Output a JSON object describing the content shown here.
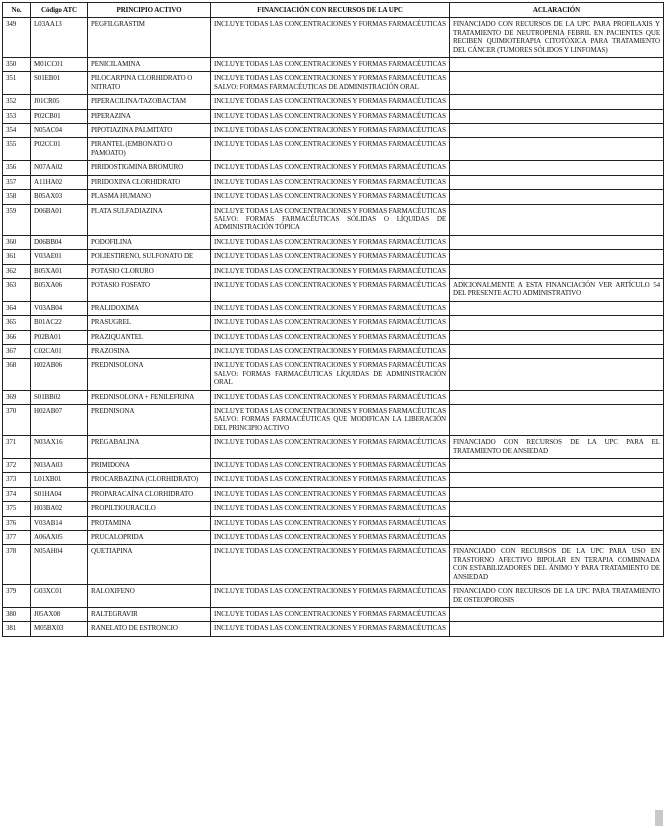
{
  "headers": {
    "no": "No.",
    "codigo": "Código ATC",
    "principio": "PRINCIPIO ACTIVO",
    "financiacion": "FINANCIACIÓN CON RECURSOS DE LA UPC",
    "aclaracion": "ACLARACIÓN"
  },
  "rows": [
    {
      "no": "349",
      "codigo": "L03AA13",
      "principio": "PEGFILGRASTIM",
      "financiacion": "INCLUYE TODAS LAS CONCENTRACIONES Y FORMAS FARMACÉUTICAS",
      "aclaracion": "FINANCIADO CON RECURSOS DE LA UPC PARA PROFILAXIS Y TRATAMIENTO DE NEUTROPENIA FEBRIL EN PACIENTES QUE RECIBEN QUIMIOTERAPIA CITOTÓXICA PARA TRATAMIENTO DEL CÁNCER (TUMORES SÓLIDOS Y LINFOMAS)"
    },
    {
      "no": "350",
      "codigo": "M01CC01",
      "principio": "PENICILAMINA",
      "financiacion": "INCLUYE TODAS LAS CONCENTRACIONES Y FORMAS FARMACÉUTICAS",
      "aclaracion": ""
    },
    {
      "no": "351",
      "codigo": "S01EB01",
      "principio": "PILOCARPINA CLORHIDRATO O NITRATO",
      "financiacion": "INCLUYE TODAS LAS CONCENTRACIONES Y FORMAS FARMACÉUTICAS SALVO: FORMAS FARMACÉUTICAS DE ADMINISTRACIÓN ORAL",
      "aclaracion": ""
    },
    {
      "no": "352",
      "codigo": "J01CR05",
      "principio": "PIPERACILINA/TAZOBACTAM",
      "financiacion": "INCLUYE TODAS LAS CONCENTRACIONES Y FORMAS FARMACÉUTICAS",
      "aclaracion": ""
    },
    {
      "no": "353",
      "codigo": "P02CB01",
      "principio": "PIPERAZINA",
      "financiacion": "INCLUYE TODAS LAS CONCENTRACIONES Y FORMAS FARMACÉUTICAS",
      "aclaracion": ""
    },
    {
      "no": "354",
      "codigo": "N05AC04",
      "principio": "PIPOTIAZINA PALMITATO",
      "financiacion": "INCLUYE TODAS LAS CONCENTRACIONES Y FORMAS FARMACÉUTICAS",
      "aclaracion": ""
    },
    {
      "no": "355",
      "codigo": "P02CC01",
      "principio": "PIRANTEL (EMBONATO O PAMOATO)",
      "financiacion": "INCLUYE TODAS LAS CONCENTRACIONES Y FORMAS FARMACÉUTICAS",
      "aclaracion": ""
    },
    {
      "no": "356",
      "codigo": "N07AA02",
      "principio": "PIRIDOSTIGMINA BROMURO",
      "financiacion": "INCLUYE TODAS LAS CONCENTRACIONES Y FORMAS FARMACÉUTICAS",
      "aclaracion": ""
    },
    {
      "no": "357",
      "codigo": "A11HA02",
      "principio": "PIRIDOXINA CLORHIDRATO",
      "financiacion": "INCLUYE TODAS LAS CONCENTRACIONES Y FORMAS FARMACÉUTICAS",
      "aclaracion": ""
    },
    {
      "no": "358",
      "codigo": "B05AX03",
      "principio": "PLASMA HUMANO",
      "financiacion": "INCLUYE TODAS LAS CONCENTRACIONES Y FORMAS FARMACÉUTICAS",
      "aclaracion": ""
    },
    {
      "no": "359",
      "codigo": "D06BA01",
      "principio": "PLATA SULFADIAZINA",
      "financiacion": "INCLUYE TODAS LAS CONCENTRACIONES Y FORMAS FARMACÉUTICAS SALVO: FORMAS FARMACÉUTICAS SÓLIDAS O LÍQUIDAS DE ADMINISTRACIÓN TÓPICA",
      "aclaracion": ""
    },
    {
      "no": "360",
      "codigo": "D06BB04",
      "principio": "PODOFILINA",
      "financiacion": "INCLUYE TODAS LAS CONCENTRACIONES Y FORMAS FARMACÉUTICAS",
      "aclaracion": ""
    },
    {
      "no": "361",
      "codigo": "V03AE01",
      "principio": "POLIESTIRENO, SULFONATO DE",
      "financiacion": "INCLUYE TODAS LAS CONCENTRACIONES Y FORMAS FARMACÉUTICAS",
      "aclaracion": ""
    },
    {
      "no": "362",
      "codigo": "B05XA01",
      "principio": "POTASIO CLORURO",
      "financiacion": "INCLUYE TODAS LAS CONCENTRACIONES Y FORMAS FARMACÉUTICAS",
      "aclaracion": ""
    },
    {
      "no": "363",
      "codigo": "B05XA06",
      "principio": "POTASIO FOSFATO",
      "financiacion": "INCLUYE TODAS LAS CONCENTRACIONES Y FORMAS FARMACÉUTICAS",
      "aclaracion": "ADICIONALMENTE A ESTA FINANCIACIÓN VER ARTÍCULO 54 DEL PRESENTE ACTO ADMINISTRATIVO"
    },
    {
      "no": "364",
      "codigo": "V03AB04",
      "principio": "PRALIDOXIMA",
      "financiacion": "INCLUYE TODAS LAS CONCENTRACIONES Y FORMAS FARMACÉUTICAS",
      "aclaracion": ""
    },
    {
      "no": "365",
      "codigo": "B01AC22",
      "principio": "PRASUGREL",
      "financiacion": "INCLUYE TODAS LAS CONCENTRACIONES Y FORMAS FARMACÉUTICAS",
      "aclaracion": ""
    },
    {
      "no": "366",
      "codigo": "P02BA01",
      "principio": "PRAZIQUANTEL",
      "financiacion": "INCLUYE TODAS LAS CONCENTRACIONES Y FORMAS FARMACÉUTICAS",
      "aclaracion": ""
    },
    {
      "no": "367",
      "codigo": "C02CA01",
      "principio": "PRAZOSINA",
      "financiacion": "INCLUYE TODAS LAS CONCENTRACIONES Y FORMAS FARMACÉUTICAS",
      "aclaracion": ""
    },
    {
      "no": "368",
      "codigo": "H02AB06",
      "principio": "PREDNISOLONA",
      "financiacion": "INCLUYE TODAS LAS CONCENTRACIONES Y FORMAS FARMACÉUTICAS SALVO: FORMAS FARMACÉUTICAS LÍQUIDAS DE ADMINISTRACIÓN ORAL",
      "aclaracion": ""
    },
    {
      "no": "369",
      "codigo": "S01BB02",
      "principio": "PREDNISOLONA + FENILEFRINA",
      "financiacion": "INCLUYE TODAS LAS CONCENTRACIONES Y FORMAS FARMACÉUTICAS",
      "aclaracion": ""
    },
    {
      "no": "370",
      "codigo": "H02AB07",
      "principio": "PREDNISONA",
      "financiacion": "INCLUYE TODAS LAS CONCENTRACIONES Y FORMAS FARMACÉUTICAS SALVO: FORMAS FARMACÉUTICAS QUE MODIFICAN LA LIBERACIÓN DEL PRINCIPIO ACTIVO",
      "aclaracion": ""
    },
    {
      "no": "371",
      "codigo": "N03AX16",
      "principio": "PREGABALINA",
      "financiacion": "INCLUYE TODAS LAS CONCENTRACIONES Y FORMAS FARMACÉUTICAS",
      "aclaracion": "FINANCIADO CON RECURSOS DE LA UPC PARA EL TRATAMIENTO DE ANSIEDAD"
    },
    {
      "no": "372",
      "codigo": "N03AA03",
      "principio": "PRIMIDONA",
      "financiacion": "INCLUYE TODAS LAS CONCENTRACIONES Y FORMAS FARMACÉUTICAS",
      "aclaracion": ""
    },
    {
      "no": "373",
      "codigo": "L01XB01",
      "principio": "PROCARBAZINA (CLORHIDRATO)",
      "financiacion": "INCLUYE TODAS LAS CONCENTRACIONES Y FORMAS FARMACÉUTICAS",
      "aclaracion": ""
    },
    {
      "no": "374",
      "codigo": "S01HA04",
      "principio": "PROPARACAÍNA CLORHIDRATO",
      "financiacion": "INCLUYE TODAS LAS CONCENTRACIONES Y FORMAS FARMACÉUTICAS",
      "aclaracion": ""
    },
    {
      "no": "375",
      "codigo": "H03BA02",
      "principio": "PROPILTIOURACILO",
      "financiacion": "INCLUYE TODAS LAS CONCENTRACIONES Y FORMAS FARMACÉUTICAS",
      "aclaracion": ""
    },
    {
      "no": "376",
      "codigo": "V03AB14",
      "principio": "PROTAMINA",
      "financiacion": "INCLUYE TODAS LAS CONCENTRACIONES Y FORMAS FARMACÉUTICAS",
      "aclaracion": ""
    },
    {
      "no": "377",
      "codigo": "A06AX05",
      "principio": "PRUCALOPRIDA",
      "financiacion": "INCLUYE TODAS LAS CONCENTRACIONES Y FORMAS FARMACÉUTICAS",
      "aclaracion": ""
    },
    {
      "no": "378",
      "codigo": "N05AH04",
      "principio": "QUETIAPINA",
      "financiacion": "INCLUYE TODAS LAS CONCENTRACIONES Y FORMAS FARMACÉUTICAS",
      "aclaracion": "FINANCIADO CON RECURSOS DE LA UPC PARA USO EN TRASTORNO AFECTIVO BIPOLAR EN TERAPIA COMBINADA CON ESTABILIZADORES DEL ÁNIMO Y PARA TRATAMIENTO DE ANSIEDAD"
    },
    {
      "no": "379",
      "codigo": "G03XC01",
      "principio": "RALOXIFENO",
      "financiacion": "INCLUYE TODAS LAS CONCENTRACIONES Y FORMAS FARMACÉUTICAS",
      "aclaracion": "FINANCIADO CON RECURSOS DE LA UPC PARA TRATAMIENTO DE OSTEOPOROSIS"
    },
    {
      "no": "380",
      "codigo": "J05AX08",
      "principio": "RALTEGRAVIR",
      "financiacion": "INCLUYE TODAS LAS CONCENTRACIONES Y FORMAS FARMACÉUTICAS",
      "aclaracion": ""
    },
    {
      "no": "381",
      "codigo": "M05BX03",
      "principio": "RANELATO DE ESTRONCIO",
      "financiacion": "INCLUYE TODAS LAS CONCENTRACIONES Y FORMAS FARMACÉUTICAS",
      "aclaracion": ""
    }
  ]
}
